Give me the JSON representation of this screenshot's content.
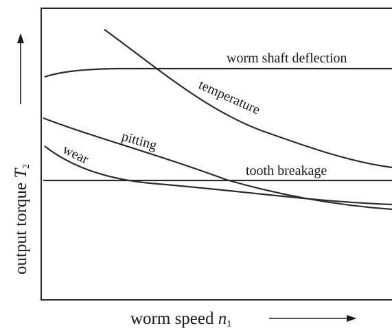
{
  "x_axis_label": {
    "text": "worm speed ",
    "symbol": "n",
    "subscript": "1"
  },
  "y_axis_label": {
    "text": "output torque ",
    "symbol": "T",
    "subscript": "2"
  },
  "curves": [
    {
      "label": "worm shaft deflection"
    },
    {
      "label": "temperature"
    },
    {
      "label": "pitting"
    },
    {
      "label": "wear"
    },
    {
      "label": "tooth breakage"
    }
  ]
}
